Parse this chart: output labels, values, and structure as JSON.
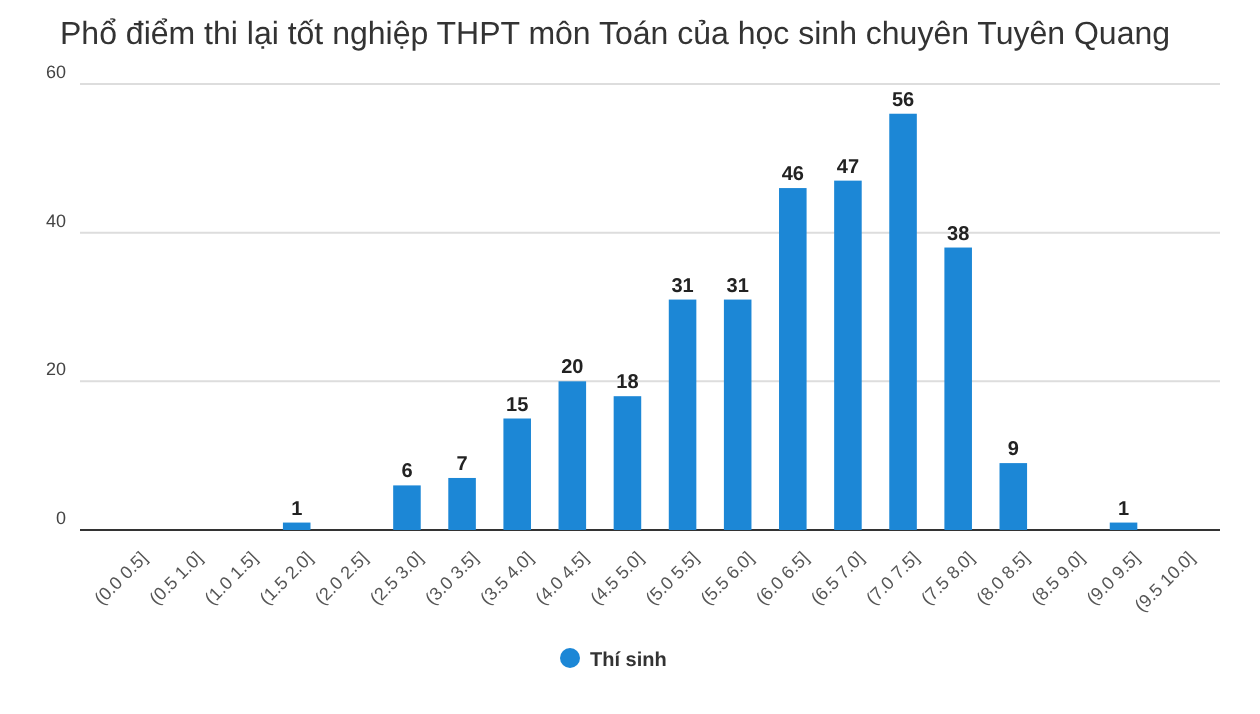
{
  "chart_data": {
    "type": "bar",
    "title": "Phổ điểm thi lại tốt nghiệp THPT môn Toán của học sinh chuyên Tuyên Quang",
    "categories": [
      "(0.0 0.5]",
      "(0.5 1.0]",
      "(1.0 1.5]",
      "(1.5 2.0]",
      "(2.0 2.5]",
      "(2.5 3.0]",
      "(3.0 3.5]",
      "(3.5 4.0]",
      "(4.0 4.5]",
      "(4.5 5.0]",
      "(5.0 5.5]",
      "(5.5 6.0]",
      "(6.0 6.5]",
      "(6.5 7.0]",
      "(7.0 7.5]",
      "(7.5 8.0]",
      "(8.0 8.5]",
      "(8.5 9.0]",
      "(9.0 9.5]",
      "(9.5 10.0]"
    ],
    "series": [
      {
        "name": "Thí sinh",
        "color": "#1c87d6",
        "values": [
          0,
          0,
          0,
          1,
          0,
          6,
          7,
          15,
          20,
          18,
          31,
          31,
          46,
          47,
          56,
          38,
          9,
          0,
          1,
          0
        ],
        "value_labels": [
          null,
          null,
          null,
          "1",
          null,
          "6",
          "7",
          "15",
          "20",
          "18",
          "31",
          "31",
          "46",
          "47",
          "56",
          "38",
          "9",
          null,
          "1",
          null
        ]
      }
    ],
    "ylim": [
      0,
      60
    ],
    "yticks": [
      0,
      20,
      40,
      60
    ],
    "grid": "y",
    "legend": "bottom"
  }
}
